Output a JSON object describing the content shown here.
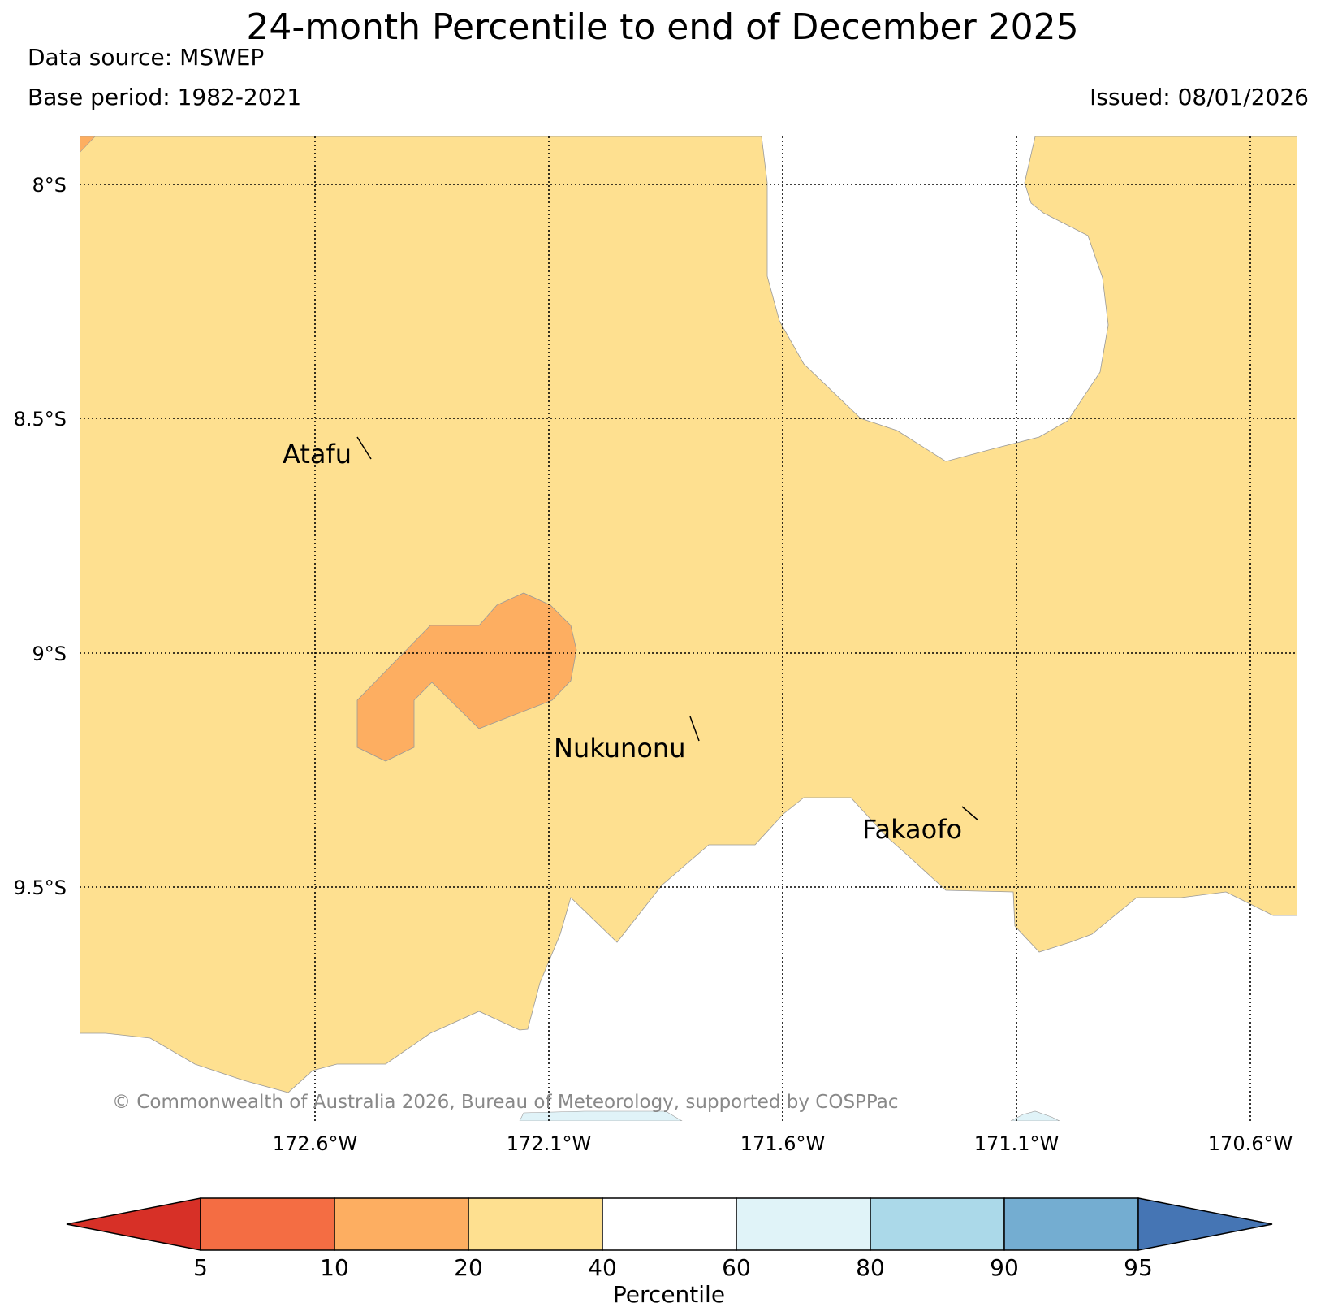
{
  "header": {
    "title": "24-month Percentile to end of December 2025",
    "data_source": "Data source: MSWEP",
    "base_period": "Base period: 1982-2021",
    "issued": "Issued: 08/01/2026"
  },
  "map": {
    "lat_labels": [
      "8°S",
      "8.5°S",
      "9°S",
      "9.5°S"
    ],
    "lon_labels": [
      "172.6°W",
      "172.1°W",
      "171.6°W",
      "171.1°W",
      "170.6°W"
    ],
    "places": [
      "Atafu",
      "Nukunonu",
      "Fakaofo"
    ],
    "credit": "© Commonwealth of Australia 2026, Bureau of Meteorology, supported by COSPPac"
  },
  "legend": {
    "label": "Percentile",
    "ticks": [
      "5",
      "10",
      "20",
      "40",
      "60",
      "80",
      "90",
      "95"
    ],
    "colors": [
      "#d73027",
      "#f46d43",
      "#fdae61",
      "#fee090",
      "#ffffff",
      "#e0f3f8",
      "#abd9e9",
      "#74add1",
      "#4575b4"
    ]
  }
}
